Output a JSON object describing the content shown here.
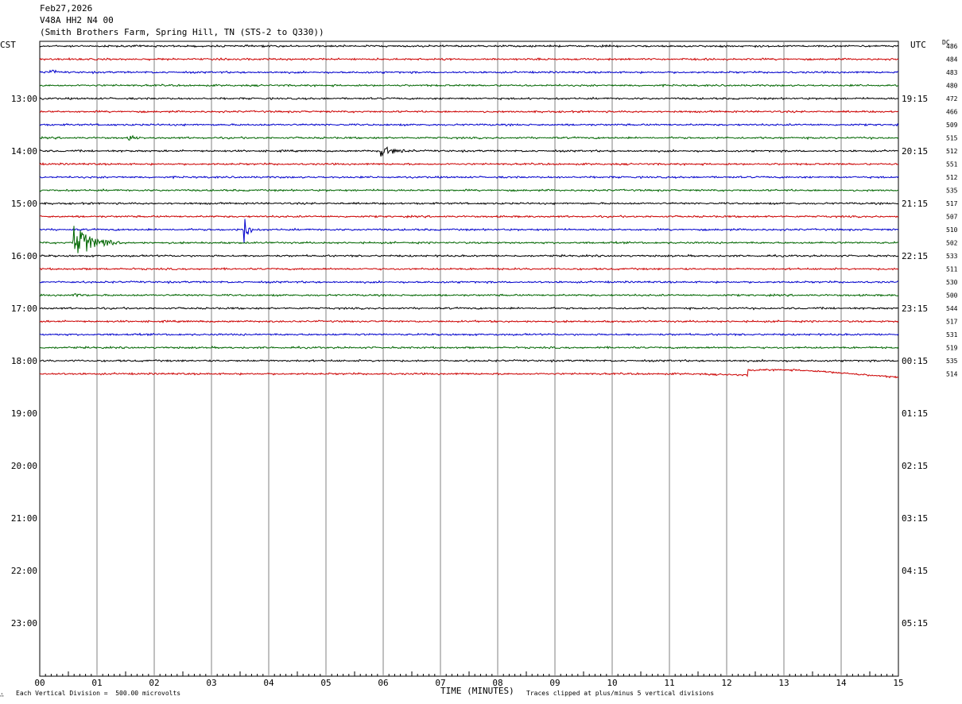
{
  "header": {
    "date": "Feb27,2026",
    "station": "V48A HH2 N4 00",
    "location": "(Smith Brothers Farm, Spring Hill, TN (STS-2 to Q330))"
  },
  "left_label": "CST",
  "right_label": "UTC",
  "dc_label": "DC",
  "footer": {
    "scale": "Each Vertical Division =  500.00 microvolts",
    "clip": "Traces clipped at plus/minus 5 vertical divisions",
    "corner": "∴"
  },
  "chart_data": {
    "type": "line",
    "title": "",
    "xlabel": "TIME (MINUTES)",
    "xlim": [
      0,
      15
    ],
    "x_ticks": [
      "00",
      "01",
      "02",
      "03",
      "04",
      "05",
      "06",
      "07",
      "08",
      "09",
      "10",
      "11",
      "12",
      "13",
      "14",
      "15"
    ],
    "cst_hour_labels": [
      "13:00",
      "14:00",
      "15:00",
      "16:00",
      "17:00",
      "18:00",
      "19:00",
      "20:00",
      "21:00",
      "22:00",
      "23:00"
    ],
    "utc_hour_labels": [
      "19:15",
      "20:15",
      "21:15",
      "22:15",
      "23:15",
      "00:15",
      "01:15",
      "02:15",
      "03:15",
      "04:15",
      "05:15"
    ],
    "trace_colors": [
      "#000000",
      "#cc0000",
      "#0000cc",
      "#006600"
    ],
    "traces_per_hour": 4,
    "dc_offsets": [
      486,
      484,
      483,
      480,
      472,
      466,
      509,
      515,
      512,
      551,
      512,
      535,
      517,
      507,
      510,
      502,
      533,
      511,
      530,
      500,
      544,
      517,
      531,
      519,
      535,
      514
    ],
    "events": [
      {
        "trace": 2,
        "minute": 0.17,
        "amplitude": 2.0,
        "duration_min": 0.12
      },
      {
        "trace": 7,
        "minute": 1.55,
        "amplitude": 0.4,
        "duration_min": 0.5
      },
      {
        "trace": 8,
        "minute": 5.95,
        "amplitude": 1.2,
        "duration_min": 0.6
      },
      {
        "trace": 14,
        "minute": 3.55,
        "amplitude": 3.2,
        "duration_min": 0.2
      },
      {
        "trace": 15,
        "minute": 0.57,
        "amplitude": 3.4,
        "duration_min": 0.9
      },
      {
        "trace": 19,
        "minute": 0.6,
        "amplitude": 0.4,
        "duration_min": 0.4
      }
    ],
    "long_period_wave": {
      "trace": 25,
      "start_minute": 11.5,
      "end_minute": 15,
      "amplitude": -0.6
    }
  }
}
